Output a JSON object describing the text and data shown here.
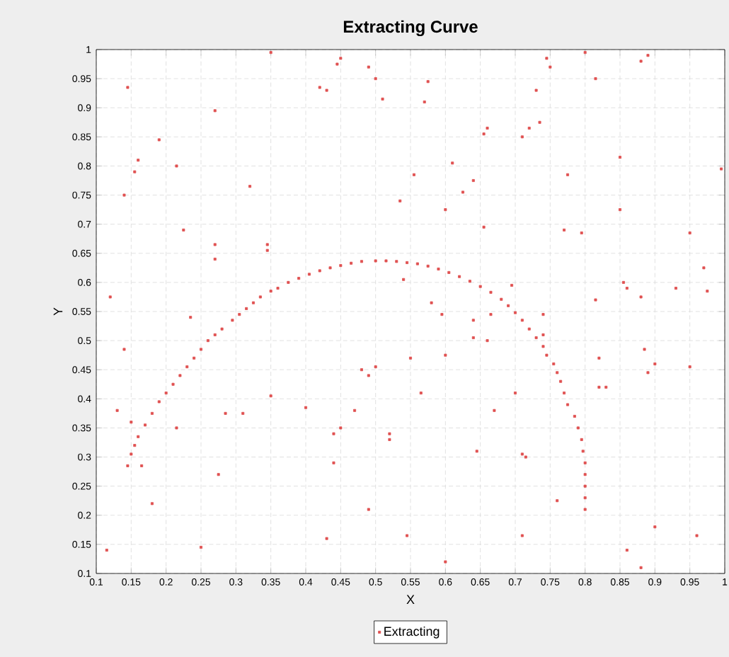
{
  "chart_data": {
    "type": "scatter",
    "title": "Extracting Curve",
    "xlabel": "X",
    "ylabel": "Y",
    "xlim": [
      0.1,
      1
    ],
    "ylim": [
      0.1,
      1
    ],
    "xticks": [
      0.1,
      0.15,
      0.2,
      0.25,
      0.3,
      0.35,
      0.4,
      0.45,
      0.5,
      0.55,
      0.6,
      0.65,
      0.7,
      0.75,
      0.8,
      0.85,
      0.9,
      0.95,
      1
    ],
    "yticks": [
      0.1,
      0.15,
      0.2,
      0.25,
      0.3,
      0.35,
      0.4,
      0.45,
      0.5,
      0.55,
      0.6,
      0.65,
      0.7,
      0.75,
      0.8,
      0.85,
      0.9,
      0.95,
      1
    ],
    "grid": true,
    "legend": "bottom",
    "marker": "square",
    "series": [
      {
        "name": "Extracting",
        "color": "#e05050",
        "x": [
          0.145,
          0.15,
          0.155,
          0.16,
          0.17,
          0.18,
          0.19,
          0.2,
          0.21,
          0.22,
          0.23,
          0.24,
          0.25,
          0.26,
          0.27,
          0.28,
          0.295,
          0.305,
          0.315,
          0.325,
          0.335,
          0.35,
          0.36,
          0.375,
          0.39,
          0.405,
          0.42,
          0.435,
          0.45,
          0.465,
          0.48,
          0.5,
          0.515,
          0.53,
          0.545,
          0.56,
          0.575,
          0.59,
          0.605,
          0.62,
          0.635,
          0.65,
          0.665,
          0.68,
          0.69,
          0.7,
          0.71,
          0.72,
          0.73,
          0.74,
          0.745,
          0.755,
          0.76,
          0.765,
          0.77,
          0.775,
          0.785,
          0.79,
          0.795,
          0.797,
          0.8,
          0.8,
          0.8,
          0.8,
          0.8,
          0.145,
          0.14,
          0.155,
          0.16,
          0.19,
          0.215,
          0.14,
          0.12,
          0.225,
          0.27,
          0.27,
          0.27,
          0.32,
          0.35,
          0.345,
          0.345,
          0.42,
          0.43,
          0.445,
          0.45,
          0.49,
          0.5,
          0.51,
          0.535,
          0.555,
          0.57,
          0.575,
          0.6,
          0.61,
          0.625,
          0.64,
          0.655,
          0.66,
          0.655,
          0.695,
          0.71,
          0.72,
          0.73,
          0.735,
          0.75,
          0.745,
          0.77,
          0.775,
          0.795,
          0.8,
          0.815,
          0.85,
          0.85,
          0.88,
          0.89,
          0.95,
          0.97,
          0.975,
          0.995,
          0.54,
          0.58,
          0.6,
          0.595,
          0.64,
          0.64,
          0.665,
          0.74,
          0.74,
          0.815,
          0.82,
          0.83,
          0.855,
          0.86,
          0.88,
          0.93,
          0.66,
          0.71,
          0.6,
          0.545,
          0.49,
          0.43,
          0.25,
          0.115,
          0.18,
          0.165,
          0.13,
          0.15,
          0.215,
          0.235,
          0.285,
          0.31,
          0.275,
          0.35,
          0.4,
          0.44,
          0.45,
          0.44,
          0.48,
          0.49,
          0.5,
          0.52,
          0.52,
          0.47,
          0.55,
          0.565,
          0.67,
          0.71,
          0.715,
          0.76,
          0.86,
          0.88,
          0.9,
          0.885,
          0.89,
          0.9,
          0.96,
          0.95,
          0.645,
          0.7,
          0.82
        ],
        "values": [
          0.285,
          0.305,
          0.32,
          0.335,
          0.355,
          0.375,
          0.395,
          0.41,
          0.425,
          0.44,
          0.455,
          0.47,
          0.485,
          0.5,
          0.51,
          0.52,
          0.535,
          0.545,
          0.555,
          0.565,
          0.575,
          0.585,
          0.59,
          0.6,
          0.607,
          0.614,
          0.62,
          0.625,
          0.629,
          0.633,
          0.636,
          0.637,
          0.637,
          0.636,
          0.634,
          0.632,
          0.628,
          0.623,
          0.617,
          0.61,
          0.602,
          0.593,
          0.583,
          0.571,
          0.56,
          0.548,
          0.535,
          0.52,
          0.505,
          0.49,
          0.475,
          0.46,
          0.445,
          0.43,
          0.41,
          0.39,
          0.37,
          0.35,
          0.33,
          0.31,
          0.29,
          0.27,
          0.25,
          0.23,
          0.21,
          0.935,
          0.75,
          0.79,
          0.81,
          0.845,
          0.8,
          0.485,
          0.575,
          0.69,
          0.64,
          0.665,
          0.895,
          0.765,
          0.995,
          0.655,
          0.665,
          0.935,
          0.93,
          0.975,
          0.985,
          0.97,
          0.95,
          0.915,
          0.74,
          0.785,
          0.91,
          0.945,
          0.725,
          0.805,
          0.755,
          0.775,
          0.855,
          0.865,
          0.695,
          0.595,
          0.85,
          0.865,
          0.93,
          0.875,
          0.97,
          0.985,
          0.69,
          0.785,
          0.685,
          0.995,
          0.95,
          0.815,
          0.725,
          0.98,
          0.99,
          0.685,
          0.625,
          0.585,
          0.795,
          0.605,
          0.565,
          0.475,
          0.545,
          0.505,
          0.535,
          0.545,
          0.545,
          0.51,
          0.57,
          0.47,
          0.42,
          0.6,
          0.59,
          0.575,
          0.59,
          0.5,
          0.165,
          0.12,
          0.165,
          0.21,
          0.16,
          0.145,
          0.14,
          0.22,
          0.285,
          0.38,
          0.36,
          0.35,
          0.54,
          0.375,
          0.375,
          0.27,
          0.405,
          0.385,
          0.34,
          0.35,
          0.29,
          0.45,
          0.44,
          0.455,
          0.34,
          0.33,
          0.38,
          0.47,
          0.41,
          0.38,
          0.305,
          0.3,
          0.225,
          0.14,
          0.11,
          0.18,
          0.485,
          0.445,
          0.46,
          0.165,
          0.455,
          0.31,
          0.41,
          0.42
        ]
      }
    ]
  }
}
